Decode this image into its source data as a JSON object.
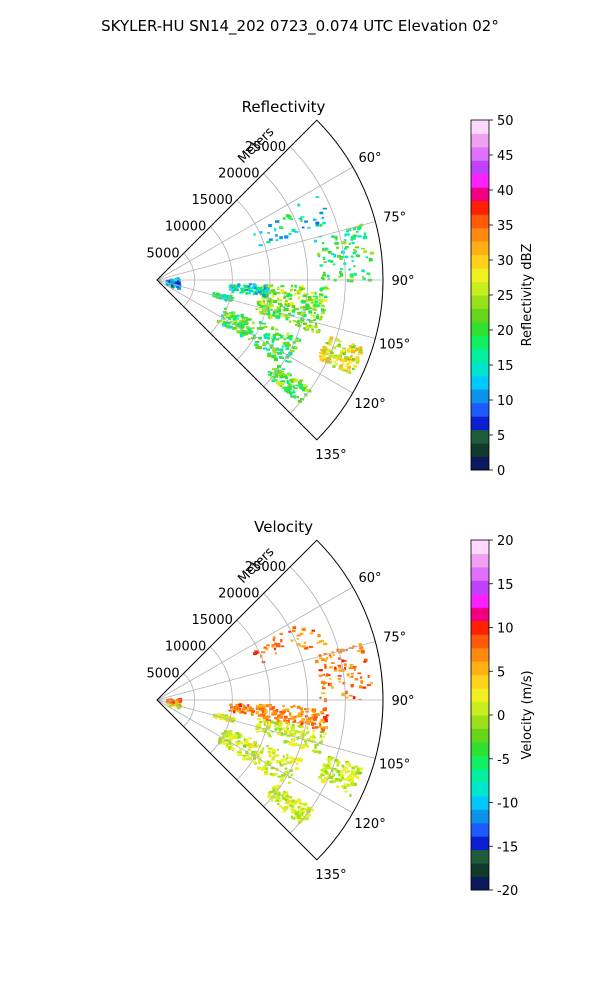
{
  "figure": {
    "title": "SKYLER-HU  SN14_202  0723_0.074 UTC Elevation 02°"
  },
  "chart_data": [
    {
      "type": "polar-sector",
      "title": "Reflectivity",
      "radial_label": "Meters",
      "r_ticks": [
        "5000",
        "10000",
        "15000",
        "20000",
        "25000"
      ],
      "r_max": 30000,
      "theta_range_deg": [
        45,
        135
      ],
      "theta_ticks": [
        "60°",
        "75°",
        "90°",
        "105°",
        "120°",
        "135°"
      ],
      "grid": true,
      "colorbar": {
        "label": "Reflectivity dBZ",
        "range": [
          0,
          50
        ],
        "ticks": [
          "0",
          "5",
          "10",
          "15",
          "20",
          "25",
          "30",
          "35",
          "40",
          "45",
          "50"
        ],
        "colors": [
          "#0b1a5c",
          "#123a2c",
          "#1f5a3a",
          "#0c1fd0",
          "#1b5bff",
          "#0a93e8",
          "#00c8ff",
          "#00e5d0",
          "#00f0a0",
          "#10f060",
          "#30e030",
          "#66d61b",
          "#99e01a",
          "#c8ee20",
          "#f0f020",
          "#ffd21c",
          "#ffb015",
          "#ff8a10",
          "#ff5a0a",
          "#ff2000",
          "#f00080",
          "#ff20ff",
          "#c040ff",
          "#e070ff",
          "#f0a0f0",
          "#ffd8ff"
        ]
      }
    },
    {
      "type": "polar-sector",
      "title": "Velocity",
      "radial_label": "Meters",
      "r_ticks": [
        "5000",
        "10000",
        "15000",
        "20000",
        "25000"
      ],
      "r_max": 30000,
      "theta_range_deg": [
        45,
        135
      ],
      "theta_ticks": [
        "60°",
        "75°",
        "90°",
        "105°",
        "120°",
        "135°"
      ],
      "grid": true,
      "colorbar": {
        "label": "Velocity (m/s)",
        "range": [
          -20,
          20
        ],
        "ticks": [
          "-20",
          "-15",
          "-10",
          "-5",
          "0",
          "5",
          "10",
          "15",
          "20"
        ],
        "colors": [
          "#0b1a5c",
          "#123a2c",
          "#1f5a3a",
          "#0c1fd0",
          "#1b5bff",
          "#0a93e8",
          "#00c8ff",
          "#00e5d0",
          "#00f0a0",
          "#10f060",
          "#30e030",
          "#66d61b",
          "#99e01a",
          "#c8ee20",
          "#f0f020",
          "#ffd21c",
          "#ffb015",
          "#ff8a10",
          "#ff5a0a",
          "#ff2000",
          "#f00080",
          "#ff20ff",
          "#c040ff",
          "#e070ff",
          "#f0a0f0",
          "#ffd8ff"
        ]
      }
    }
  ]
}
